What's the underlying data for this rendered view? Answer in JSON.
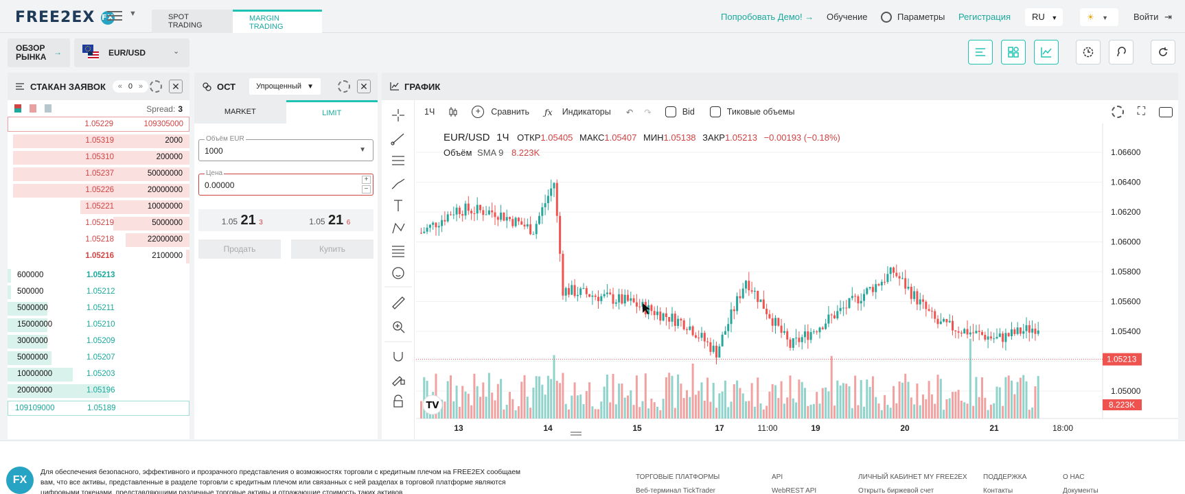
{
  "header": {
    "logo": "FREE2EX",
    "logo_badge": "FX",
    "tabs": [
      {
        "label": "SPOT TRADING"
      },
      {
        "label": "MARGIN TRADING",
        "active": true
      }
    ],
    "demo_label": "Попробовать Демо!",
    "study_label": "Обучение",
    "params_label": "Параметры",
    "register_label": "Регистрация",
    "lang": "RU",
    "login_label": "Войти"
  },
  "bar": {
    "overview_label": "ОБЗОР РЫНКА",
    "pair": "EUR/USD"
  },
  "order_book": {
    "title": "СТАКАН ЗАЯВОК",
    "counter": "0",
    "spread_label": "Spread:",
    "spread_value": "3",
    "top_ask": {
      "price": "1.05229",
      "size": "109305000"
    },
    "asks": [
      {
        "price": "1.05319",
        "size": "2000",
        "fill": 0.97
      },
      {
        "price": "1.05310",
        "size": "200000",
        "fill": 0.97
      },
      {
        "price": "1.05237",
        "size": "50000000",
        "fill": 0.97
      },
      {
        "price": "1.05226",
        "size": "20000000",
        "fill": 0.97
      },
      {
        "price": "1.05221",
        "size": "10000000",
        "fill": 0.6
      },
      {
        "price": "1.05219",
        "size": "5000000",
        "fill": 0.42
      },
      {
        "price": "1.05218",
        "size": "22000000",
        "fill": 0.35
      },
      {
        "price": "1.05216",
        "size": "2100000",
        "fill": 0.02,
        "bold": true
      }
    ],
    "bids": [
      {
        "size": "600000",
        "price": "1.05213",
        "fill": 0.02,
        "bold": true
      },
      {
        "size": "500000",
        "price": "1.05212",
        "fill": 0.02
      },
      {
        "size": "5000000",
        "price": "1.05211",
        "fill": 0.22
      },
      {
        "size": "15000000",
        "price": "1.05210",
        "fill": 0.22
      },
      {
        "size": "3000000",
        "price": "1.05209",
        "fill": 0.22
      },
      {
        "size": "5000000",
        "price": "1.05207",
        "fill": 0.24
      },
      {
        "size": "10000000",
        "price": "1.05203",
        "fill": 0.36
      },
      {
        "size": "20000000",
        "price": "1.05196",
        "fill": 0.56
      }
    ],
    "bottom_bid": {
      "size": "109109000",
      "price": "1.05189"
    }
  },
  "order_form": {
    "title": "ОСТ",
    "mode": "Упрощенный",
    "tabs": [
      "MARKET",
      "LIMIT"
    ],
    "volume_label": "Объём EUR",
    "volume_value": "1000",
    "price_label": "Цена",
    "price_value": "0.00000",
    "sell_quote": {
      "head": "1.05",
      "big": "21",
      "small": "3"
    },
    "buy_quote": {
      "head": "1.05",
      "big": "21",
      "small": "6"
    },
    "sell_label": "Продать",
    "buy_label": "Купить"
  },
  "chart_panel": {
    "title": "ГРАФИК",
    "interval": "1Ч",
    "compare_label": "Сравнить",
    "indicators_label": "Индикаторы",
    "bid_label": "Bid",
    "tick_volume_label": "Тиковые объемы",
    "ohlc": {
      "symbol": "EUR/USD",
      "interval": "1Ч",
      "open_label": "ОТКР",
      "open": "1.05405",
      "high_label": "МАКС",
      "high": "1.05407",
      "low_label": "МИН",
      "low": "1.05138",
      "close_label": "ЗАКР",
      "close": "1.05213",
      "change": "−0.00193 (−0.18%)"
    },
    "volume_legend": {
      "label": "Объём",
      "sma": "SMA 9",
      "value": "8.223K"
    },
    "price_axis": [
      "1.06600",
      "1.06400",
      "1.06200",
      "1.06000",
      "1.05800",
      "1.05600",
      "1.05400",
      "1.05200",
      "1.05000"
    ],
    "last_price": "1.05213",
    "last_volume": "8.223K",
    "time_axis": [
      "13",
      "14",
      "15",
      "17",
      "11:00",
      "19",
      "20",
      "21",
      "18:00"
    ]
  },
  "footer": {
    "disclaimer": "Для обеспечения безопасного, эффективного и прозрачного представления о возможностях торговли с кредитным плечом на FREE2EX сообщаем вам, что все активы, представленные в разделе торговли с кредитным плечом или связанных с ней разделах в торговой платформе являются цифровыми токенами, представляющими различные торговые активы и отражающие стоимость таких активов",
    "columns": [
      {
        "head": "ТОРГОВЫЕ ПЛАТФОРМЫ",
        "first": "Веб-терминал TickTrader"
      },
      {
        "head": "API",
        "first": "WebREST API"
      },
      {
        "head": "ЛИЧНЫЙ КАБИНЕТ MY FREE2EX",
        "first": "Открыть биржевой счет"
      },
      {
        "head": "ПОДДЕРЖКА",
        "first": "Контакты"
      },
      {
        "head": "О НАС",
        "first": "Документы"
      }
    ]
  },
  "colors": {
    "accent": "#1fc3b4",
    "up": "#26a69a",
    "down": "#ef5350",
    "ask_text": "#d14343"
  }
}
